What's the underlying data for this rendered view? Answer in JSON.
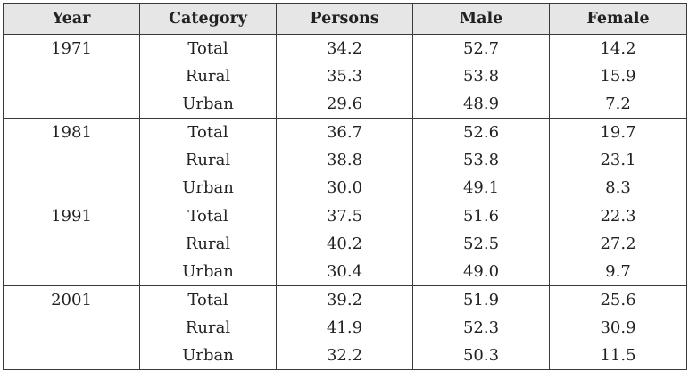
{
  "table": {
    "headers": [
      "Year",
      "Category",
      "Persons",
      "Male",
      "Female"
    ],
    "groups": [
      {
        "year": "1971",
        "rows": [
          {
            "category": "Total",
            "persons": "34.2",
            "male": "52.7",
            "female": "14.2"
          },
          {
            "category": "Rural",
            "persons": "35.3",
            "male": "53.8",
            "female": "15.9"
          },
          {
            "category": "Urban",
            "persons": "29.6",
            "male": "48.9",
            "female": "7.2"
          }
        ]
      },
      {
        "year": "1981",
        "rows": [
          {
            "category": "Total",
            "persons": "36.7",
            "male": "52.6",
            "female": "19.7"
          },
          {
            "category": "Rural",
            "persons": "38.8",
            "male": "53.8",
            "female": "23.1"
          },
          {
            "category": "Urban",
            "persons": "30.0",
            "male": "49.1",
            "female": "8.3"
          }
        ]
      },
      {
        "year": "1991",
        "rows": [
          {
            "category": "Total",
            "persons": "37.5",
            "male": "51.6",
            "female": "22.3"
          },
          {
            "category": "Rural",
            "persons": "40.2",
            "male": "52.5",
            "female": "27.2"
          },
          {
            "category": "Urban",
            "persons": "30.4",
            "male": "49.0",
            "female": "9.7"
          }
        ]
      },
      {
        "year": "2001",
        "rows": [
          {
            "category": "Total",
            "persons": "39.2",
            "male": "51.9",
            "female": "25.6"
          },
          {
            "category": "Rural",
            "persons": "41.9",
            "male": "52.3",
            "female": "30.9"
          },
          {
            "category": "Urban",
            "persons": "32.2",
            "male": "50.3",
            "female": "11.5"
          }
        ]
      }
    ]
  }
}
